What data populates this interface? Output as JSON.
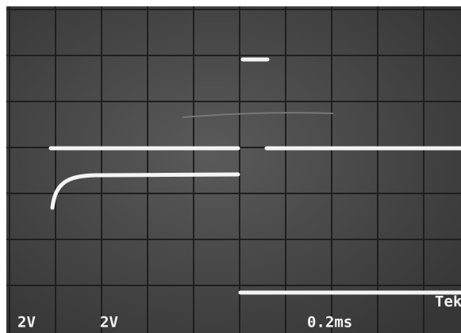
{
  "readout": {
    "ch1_scale": "2V",
    "ch2_scale": "2V",
    "timebase": "0.2ms",
    "brand": "Tek"
  }
}
